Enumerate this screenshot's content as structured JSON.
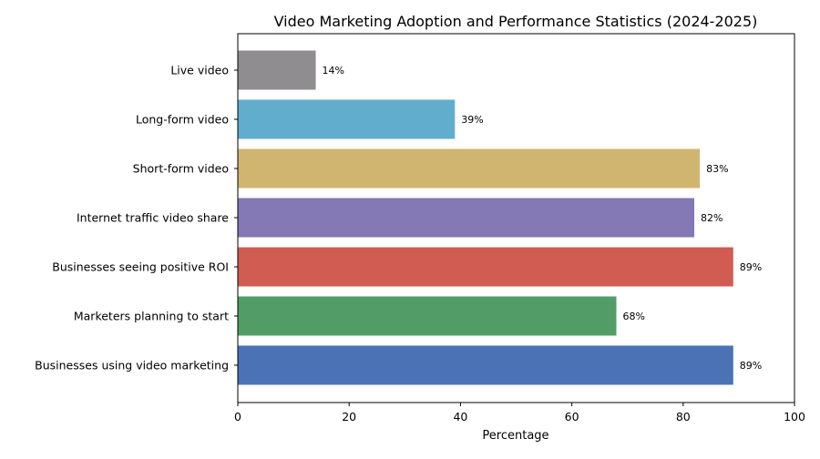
{
  "chart_data": {
    "type": "bar",
    "orientation": "horizontal",
    "title": "Video Marketing Adoption and Performance Statistics (2024-2025)",
    "xlabel": "Percentage",
    "ylabel": "",
    "xlim": [
      0,
      100
    ],
    "xticks": [
      0,
      20,
      40,
      60,
      80,
      100
    ],
    "grid": false,
    "categories": [
      "Businesses using video marketing",
      "Marketers planning to start",
      "Businesses seeing positive ROI",
      "Internet traffic video share",
      "Short-form video",
      "Long-form video",
      "Live video"
    ],
    "values": [
      89,
      68,
      89,
      82,
      83,
      39,
      14
    ],
    "data_labels": [
      "89%",
      "68%",
      "89%",
      "82%",
      "83%",
      "39%",
      "14%"
    ],
    "colors": [
      "#4a72b5",
      "#529c68",
      "#d05c52",
      "#8478b5",
      "#d0b570",
      "#60adce",
      "#8f8d90"
    ]
  }
}
